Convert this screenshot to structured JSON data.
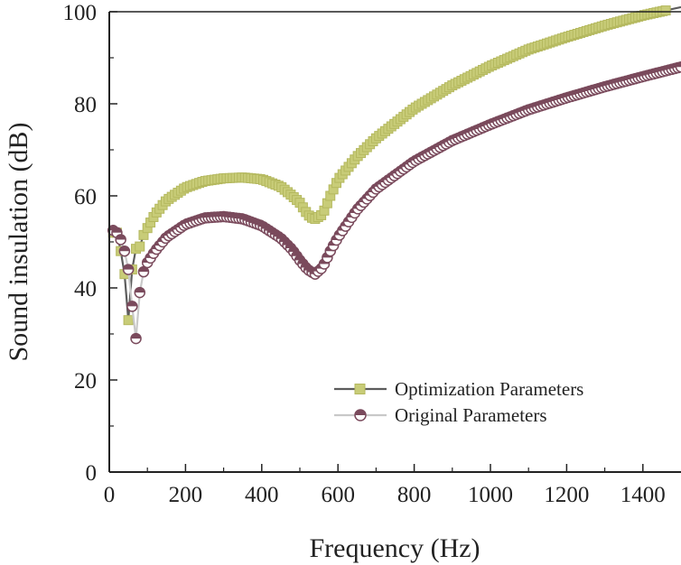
{
  "chart_data": {
    "type": "line",
    "title": "",
    "xlabel": "Frequency (Hz)",
    "ylabel": "Sound insulation (dB)",
    "xlim": [
      0,
      1500
    ],
    "ylim": [
      0,
      100
    ],
    "xticks": [
      0,
      200,
      400,
      600,
      800,
      1000,
      1200,
      1400
    ],
    "yticks": [
      0,
      20,
      40,
      60,
      80,
      100
    ],
    "grid": false,
    "legend_position": "lower-right",
    "series": [
      {
        "name": "Optimization Parameters",
        "marker": "square",
        "color": "#c8cc78",
        "line_color": "#5c5c5c",
        "points": [
          [
            10,
            52
          ],
          [
            20,
            52
          ],
          [
            30,
            48
          ],
          [
            40,
            43
          ],
          [
            50,
            33
          ],
          [
            60,
            44
          ],
          [
            70,
            48.5
          ],
          [
            80,
            49
          ],
          [
            90,
            51.5
          ],
          [
            100,
            53
          ],
          [
            120,
            56
          ],
          [
            150,
            59
          ],
          [
            200,
            61.8
          ],
          [
            250,
            63.2
          ],
          [
            300,
            63.8
          ],
          [
            350,
            64
          ],
          [
            400,
            63.6
          ],
          [
            450,
            62
          ],
          [
            480,
            60
          ],
          [
            500,
            58.5
          ],
          [
            520,
            56
          ],
          [
            530,
            55.3
          ],
          [
            540,
            55
          ],
          [
            560,
            56
          ],
          [
            580,
            60
          ],
          [
            600,
            63.5
          ],
          [
            650,
            68.5
          ],
          [
            700,
            72.5
          ],
          [
            800,
            79
          ],
          [
            900,
            84
          ],
          [
            1000,
            88.2
          ],
          [
            1100,
            91.8
          ],
          [
            1200,
            94.5
          ],
          [
            1300,
            97
          ],
          [
            1400,
            99.2
          ],
          [
            1500,
            101
          ]
        ]
      },
      {
        "name": "Original Parameters",
        "marker": "circle",
        "color": "#7a4a5c",
        "line_color": "#c9c9c9",
        "points": [
          [
            10,
            52.5
          ],
          [
            20,
            52
          ],
          [
            30,
            50.5
          ],
          [
            40,
            48
          ],
          [
            50,
            44
          ],
          [
            60,
            36
          ],
          [
            70,
            29
          ],
          [
            80,
            39
          ],
          [
            90,
            43.5
          ],
          [
            100,
            45.5
          ],
          [
            120,
            48
          ],
          [
            150,
            51
          ],
          [
            200,
            53.8
          ],
          [
            250,
            55.2
          ],
          [
            300,
            55.5
          ],
          [
            350,
            55
          ],
          [
            400,
            53.5
          ],
          [
            450,
            50.8
          ],
          [
            480,
            48.3
          ],
          [
            500,
            46
          ],
          [
            520,
            44
          ],
          [
            540,
            43
          ],
          [
            560,
            44.5
          ],
          [
            580,
            48
          ],
          [
            600,
            51
          ],
          [
            650,
            57
          ],
          [
            700,
            61.5
          ],
          [
            800,
            67.5
          ],
          [
            900,
            72
          ],
          [
            1000,
            75.5
          ],
          [
            1100,
            78.7
          ],
          [
            1200,
            81.3
          ],
          [
            1300,
            83.7
          ],
          [
            1400,
            85.9
          ],
          [
            1500,
            88
          ]
        ]
      }
    ]
  }
}
